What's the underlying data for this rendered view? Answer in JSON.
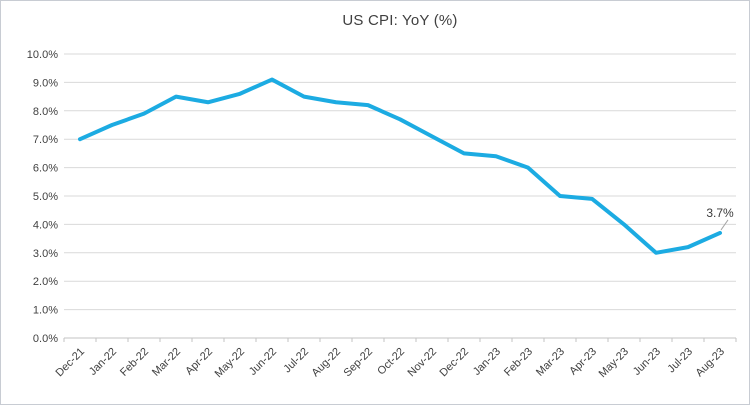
{
  "chart_data": {
    "type": "line",
    "title": "US CPI: YoY (%)",
    "categories": [
      "Dec-21",
      "Jan-22",
      "Feb-22",
      "Mar-22",
      "Apr-22",
      "May-22",
      "Jun-22",
      "Jul-22",
      "Aug-22",
      "Sep-22",
      "Oct-22",
      "Nov-22",
      "Dec-22",
      "Jan-23",
      "Feb-23",
      "Mar-23",
      "Apr-23",
      "May-23",
      "Jun-23",
      "Jul-23",
      "Aug-23"
    ],
    "series": [
      {
        "color": "#1cabe2",
        "values": [
          7.0,
          7.5,
          7.9,
          8.5,
          8.3,
          8.6,
          9.1,
          8.5,
          8.3,
          8.2,
          7.7,
          7.1,
          6.5,
          6.4,
          6.0,
          5.0,
          4.9,
          4.0,
          3.0,
          3.2,
          3.7
        ]
      }
    ],
    "xlabel": "",
    "ylabel": "",
    "ylim": [
      0,
      10
    ],
    "y_ticks": [
      {
        "v": 0,
        "label": "0.0%"
      },
      {
        "v": 1,
        "label": "1.0%"
      },
      {
        "v": 2,
        "label": "2.0%"
      },
      {
        "v": 3,
        "label": "3.0%"
      },
      {
        "v": 4,
        "label": "4.0%"
      },
      {
        "v": 5,
        "label": "5.0%"
      },
      {
        "v": 6,
        "label": "6.0%"
      },
      {
        "v": 7,
        "label": "7.0%"
      },
      {
        "v": 8,
        "label": "8.0%"
      },
      {
        "v": 9,
        "label": "9.0%"
      },
      {
        "v": 10,
        "label": "10.0%"
      }
    ],
    "grid": "horizontal",
    "legend": "none",
    "annotation": {
      "text": "3.7%",
      "at_category": "Aug-23",
      "value": 3.7
    }
  },
  "styles": {
    "line_color": "#1cabe2",
    "grid_color": "#d9d9d9",
    "axis_color": "#c3c3c3",
    "text_color": "#404040",
    "annotation_color": "#3a3a3a",
    "leader_color": "#a6a6a6",
    "border_color": "#c8ccd3",
    "background": "#ffffff"
  }
}
